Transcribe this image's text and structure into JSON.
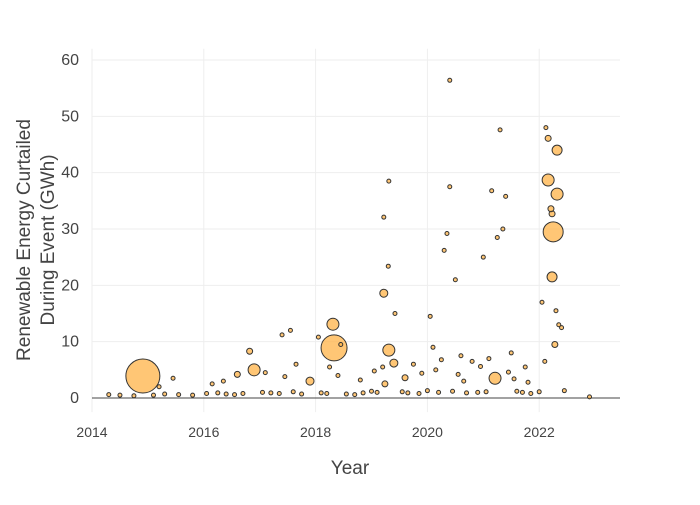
{
  "chart_data": {
    "type": "scatter",
    "title": "",
    "xlabel": "Year",
    "ylabel_lines": [
      "Renewable Energy Curtailed",
      "During Event (GWh)"
    ],
    "xlim": [
      2014,
      2023.5
    ],
    "ylim": [
      -2.5,
      62
    ],
    "x_ticks": [
      2014,
      2016,
      2018,
      2020,
      2022
    ],
    "x_tick_labels": [
      "2014",
      "2016",
      "2018",
      "2020",
      "2022"
    ],
    "y_ticks": [
      0,
      10,
      20,
      30,
      40,
      50,
      60
    ],
    "y_tick_labels": [
      "0",
      "10",
      "20",
      "30",
      "40",
      "50",
      "60"
    ],
    "grid": true,
    "marker_color": "#ffb347",
    "marker_edge_color": "#333333",
    "points": {
      "x": [
        2014.91,
        2018.33,
        2018.31,
        2016.9,
        2022.25,
        2022.32,
        2022.16,
        2022.32,
        2022.23,
        2019.31,
        2019.4,
        2019.22,
        2021.21,
        2017.9,
        2016.82,
        2019.24,
        2022.16,
        2022.23,
        2022.21,
        2020.4,
        2021.3,
        2019.31,
        2019.22,
        2020.4,
        2021.15,
        2022.12,
        2019.3,
        2019.42,
        2020.05,
        2020.3,
        2020.35,
        2020.5,
        2021.0,
        2021.25,
        2021.35,
        2021.4,
        2022.05,
        2022.3,
        2022.35,
        2017.4,
        2017.55,
        2018.05,
        2018.45,
        2019.75,
        2020.1,
        2020.6,
        2020.8,
        2021.5,
        2021.75,
        2022.4,
        2014.3,
        2014.5,
        2014.75,
        2015.1,
        2015.3,
        2015.55,
        2015.8,
        2016.05,
        2016.25,
        2016.4,
        2016.55,
        2016.7,
        2017.05,
        2017.2,
        2017.35,
        2017.6,
        2017.75,
        2018.1,
        2018.2,
        2018.55,
        2018.7,
        2018.85,
        2019.0,
        2019.1,
        2019.55,
        2019.65,
        2019.85,
        2020.0,
        2020.2,
        2020.45,
        2020.7,
        2020.9,
        2021.05,
        2021.6,
        2021.7,
        2021.85,
        2022.0,
        2022.45,
        2022.9,
        2015.2,
        2015.45,
        2016.15,
        2016.35,
        2016.6,
        2017.1,
        2017.45,
        2017.65,
        2018.25,
        2018.4,
        2018.8,
        2019.05,
        2019.2,
        2019.6,
        2019.9,
        2020.15,
        2020.25,
        2020.55,
        2020.65,
        2020.95,
        2021.1,
        2021.45,
        2021.55,
        2021.8,
        2022.1,
        2022.28
      ],
      "y": [
        3.9,
        8.9,
        13.1,
        5.0,
        29.5,
        36.2,
        38.7,
        44.0,
        21.5,
        8.5,
        6.2,
        18.6,
        3.5,
        3.0,
        8.3,
        2.5,
        46.1,
        32.7,
        33.6,
        56.4,
        47.6,
        38.5,
        32.1,
        37.5,
        36.8,
        48.0,
        23.4,
        15.0,
        14.5,
        26.2,
        29.2,
        21.0,
        25.0,
        28.5,
        30.0,
        35.8,
        17.0,
        15.5,
        13.0,
        11.2,
        12.0,
        10.8,
        9.5,
        6.0,
        9.0,
        7.5,
        6.5,
        8.0,
        5.5,
        12.5,
        0.6,
        0.5,
        0.4,
        0.5,
        0.7,
        0.6,
        0.5,
        0.8,
        0.9,
        0.7,
        0.6,
        0.8,
        1.0,
        0.9,
        0.8,
        1.1,
        0.7,
        0.9,
        0.8,
        0.7,
        0.6,
        0.9,
        1.2,
        1.0,
        1.1,
        0.9,
        0.8,
        1.3,
        1.0,
        1.2,
        0.9,
        1.0,
        1.1,
        1.2,
        1.0,
        0.8,
        1.1,
        1.3,
        0.2,
        2.0,
        3.5,
        2.5,
        3.0,
        4.2,
        4.5,
        3.8,
        6.0,
        5.5,
        4.0,
        3.2,
        4.8,
        5.5,
        3.6,
        4.4,
        5.0,
        6.8,
        4.2,
        3.0,
        5.6,
        7.0,
        4.6,
        3.4,
        2.8,
        6.5,
        9.5
      ],
      "marker_size": [
        17,
        13,
        6,
        6,
        10,
        6,
        6,
        5,
        5,
        6,
        4,
        4,
        6,
        4,
        3,
        3,
        3,
        3,
        3,
        2,
        2,
        2,
        2,
        2,
        2,
        2,
        2,
        2,
        2,
        2,
        2,
        2,
        2,
        2,
        2,
        2,
        2,
        2,
        2,
        2,
        2,
        2,
        2,
        2,
        2,
        2,
        2,
        2,
        2,
        2,
        2,
        2,
        2,
        2,
        2,
        2,
        2,
        2,
        2,
        2,
        2,
        2,
        2,
        2,
        2,
        2,
        2,
        2,
        2,
        2,
        2,
        2,
        2,
        2,
        2,
        2,
        2,
        2,
        2,
        2,
        2,
        2,
        2,
        2,
        2,
        2,
        2,
        2,
        2,
        2,
        2,
        2,
        2,
        3,
        2,
        2,
        2,
        2,
        2,
        2,
        2,
        2,
        3,
        2,
        2,
        2,
        2,
        2,
        2,
        2,
        2,
        2,
        2,
        2,
        3
      ]
    }
  }
}
